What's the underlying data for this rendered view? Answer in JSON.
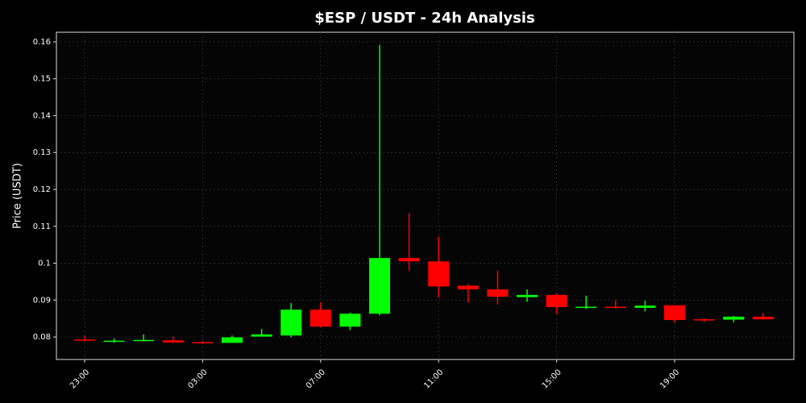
{
  "chart_data": {
    "type": "candlestick",
    "title": "$ESP / USDT - 24h Analysis",
    "y_label": "Price (USDT)",
    "categories": [
      "23:00",
      null,
      null,
      null,
      "03:00",
      null,
      null,
      null,
      "07:00",
      null,
      null,
      null,
      "11:00",
      null,
      null,
      null,
      "15:00",
      null,
      null,
      null,
      "19:00",
      null,
      null,
      null
    ],
    "open": [
      0.0793,
      0.0788,
      0.0789,
      0.0791,
      0.0786,
      0.0784,
      0.0801,
      0.0804,
      0.0874,
      0.0828,
      0.0863,
      0.1014,
      0.1005,
      0.0939,
      0.0929,
      0.0908,
      0.0914,
      0.088,
      0.0882,
      0.0879,
      0.0886,
      0.0848,
      0.0847,
      0.0855
    ],
    "high": [
      0.0803,
      0.0796,
      0.0807,
      0.0802,
      0.0789,
      0.0804,
      0.0822,
      0.0892,
      0.0894,
      0.0866,
      0.1592,
      0.1136,
      0.1072,
      0.0943,
      0.098,
      0.0929,
      0.0918,
      0.0912,
      0.09,
      0.0898,
      0.0886,
      0.0851,
      0.0857,
      0.0865
    ],
    "low": [
      0.0788,
      0.0784,
      0.0788,
      0.0784,
      0.0782,
      0.0784,
      0.0801,
      0.0799,
      0.0826,
      0.0819,
      0.0859,
      0.098,
      0.0907,
      0.0893,
      0.0888,
      0.0895,
      0.0862,
      0.0876,
      0.0877,
      0.0869,
      0.0839,
      0.084,
      0.084,
      0.0847
    ],
    "close": [
      0.079,
      0.079,
      0.0792,
      0.0785,
      0.0784,
      0.0799,
      0.0807,
      0.0874,
      0.0828,
      0.0863,
      0.1014,
      0.1005,
      0.0937,
      0.0929,
      0.0909,
      0.0914,
      0.0881,
      0.0882,
      0.0879,
      0.0885,
      0.0846,
      0.0846,
      0.0855,
      0.0848
    ],
    "up_color": "#00ff00",
    "down_color": "#ff0000",
    "ylim": [
      0.0739,
      0.1626
    ],
    "yticks": [
      0.08,
      0.09,
      0.1,
      0.11,
      0.12,
      0.13,
      0.14,
      0.15,
      0.16
    ],
    "grid": true
  }
}
